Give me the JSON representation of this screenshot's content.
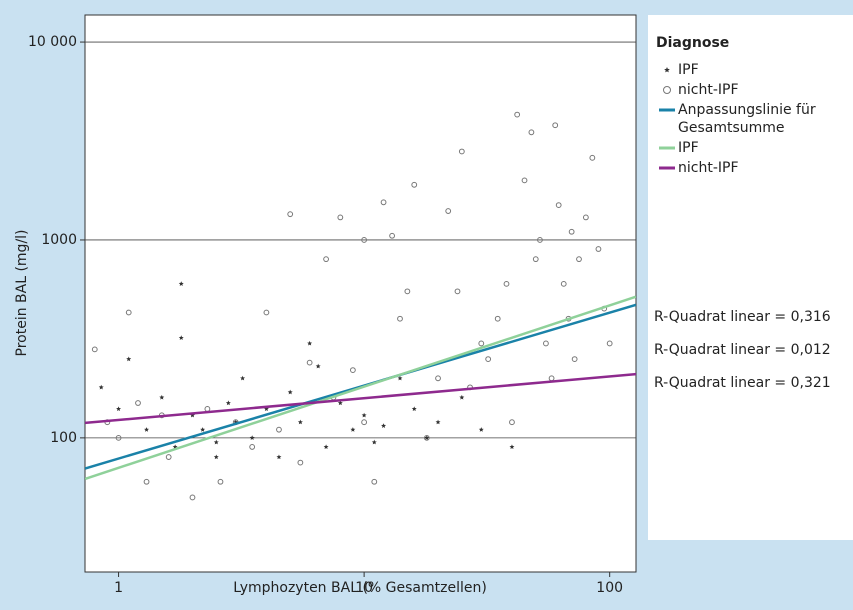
{
  "chart_data": {
    "type": "scatter",
    "x_label": "Lymphozyten BAL (% Gesamtzellen)",
    "y_label": "Protein BAL (mg/l)",
    "log_x": true,
    "log_y": true,
    "xlim": [
      0.73,
      128
    ],
    "ylim": [
      21,
      13700
    ],
    "xticks": [
      1,
      10,
      100
    ],
    "yticks": [
      100,
      1000,
      {
        "value": 10000,
        "label": "10 000"
      }
    ],
    "grid": true,
    "legend_title": "Diagnose",
    "series": [
      {
        "name": "IPF",
        "marker": "star",
        "color": "#333333",
        "x": [
          0.85,
          1,
          1.1,
          1.3,
          1.5,
          1.7,
          1.8,
          2,
          2.2,
          2.5,
          2.8,
          3,
          3.2,
          3.5,
          4,
          4.5,
          5,
          5.5,
          6,
          7,
          8,
          9,
          10,
          11,
          12,
          14,
          16,
          18,
          20,
          25,
          30,
          40,
          1.8,
          2.5,
          6.5
        ],
        "y": [
          180,
          140,
          250,
          110,
          160,
          90,
          600,
          130,
          110,
          95,
          150,
          120,
          200,
          100,
          140,
          80,
          170,
          120,
          300,
          90,
          150,
          110,
          130,
          95,
          115,
          200,
          140,
          100,
          120,
          160,
          110,
          90,
          320,
          80,
          230
        ]
      },
      {
        "name": "nicht-IPF",
        "marker": "circle",
        "color": "#777777",
        "x": [
          0.8,
          0.9,
          1,
          1.1,
          1.2,
          1.3,
          1.5,
          1.6,
          2,
          2.3,
          2.6,
          3,
          3.5,
          4,
          4.5,
          5,
          5.5,
          6,
          7,
          7.5,
          8,
          9,
          10,
          10,
          11,
          12,
          13,
          14,
          15,
          16,
          18,
          20,
          22,
          24,
          25,
          27,
          30,
          32,
          35,
          38,
          40,
          42,
          45,
          48,
          50,
          52,
          55,
          58,
          60,
          62,
          65,
          68,
          70,
          72,
          75,
          80,
          85,
          90,
          95,
          100
        ],
        "y": [
          280,
          120,
          100,
          430,
          150,
          60,
          130,
          80,
          50,
          140,
          60,
          120,
          90,
          430,
          110,
          1350,
          75,
          240,
          800,
          160,
          1300,
          220,
          1000,
          120,
          60,
          1550,
          1050,
          400,
          550,
          1900,
          100,
          200,
          1400,
          550,
          2800,
          180,
          300,
          250,
          400,
          600,
          120,
          4300,
          2000,
          3500,
          800,
          1000,
          300,
          200,
          3800,
          1500,
          600,
          400,
          1100,
          250,
          800,
          1300,
          2600,
          900,
          450,
          300
        ]
      }
    ],
    "fit_lines": [
      {
        "name": "Anpassungslinie für Gesamtsumme",
        "color": "#1a82a8",
        "x": [
          0.73,
          128
        ],
        "y": [
          70,
          470
        ]
      },
      {
        "name": "IPF",
        "color": "#8fd19a",
        "x": [
          0.73,
          128
        ],
        "y": [
          62,
          517
        ]
      },
      {
        "name": "nicht-IPF",
        "color": "#8e2a8e",
        "x": [
          0.73,
          128
        ],
        "y": [
          119,
          210
        ]
      }
    ],
    "annotations": [
      "R-Quadrat linear = 0,316",
      "R-Quadrat linear = 0,012",
      "R-Quadrat linear = 0,321"
    ]
  }
}
